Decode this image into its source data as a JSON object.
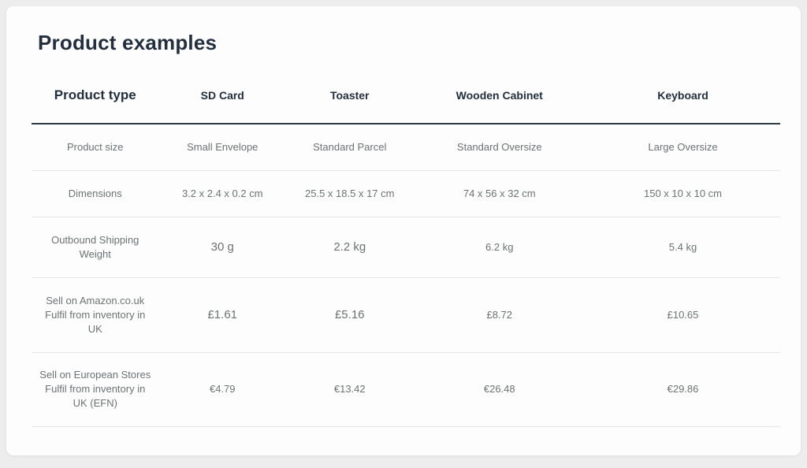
{
  "page": {
    "title": "Product examples"
  },
  "colors": {
    "heading_text": "#232f3e",
    "body_text": "#6b7373",
    "header_rule": "#2b3a47",
    "row_divider": "#e4e6e6",
    "card_background": "#fdfdfd",
    "page_background": "#ededee"
  },
  "table": {
    "header": [
      "Product type",
      "SD Card",
      "Toaster",
      "Wooden Cabinet",
      "Keyboard"
    ],
    "rows": [
      {
        "label": "Product size",
        "values": [
          "Small Envelope",
          "Standard Parcel",
          "Standard Oversize",
          "Large Oversize"
        ]
      },
      {
        "label": "Dimensions",
        "values": [
          "3.2 x 2.4 x 0.2 cm",
          "25.5 x 18.5 x 17 cm",
          "74 x 56 x 32 cm",
          "150 x 10 x 10 cm"
        ]
      },
      {
        "label": "Outbound Shipping Weight",
        "values": [
          "30 g",
          "2.2 kg",
          "6.2 kg",
          "5.4 kg"
        ]
      },
      {
        "label": "Sell on Amazon.co.uk Fulfil from inventory in UK",
        "values": [
          "£1.61",
          "£5.16",
          "£8.72",
          "£10.65"
        ]
      },
      {
        "label": "Sell on European Stores Fulfil from inventory in UK (EFN)",
        "values": [
          "€4.79",
          "€13.42",
          "€26.48",
          "€29.86"
        ]
      }
    ]
  }
}
